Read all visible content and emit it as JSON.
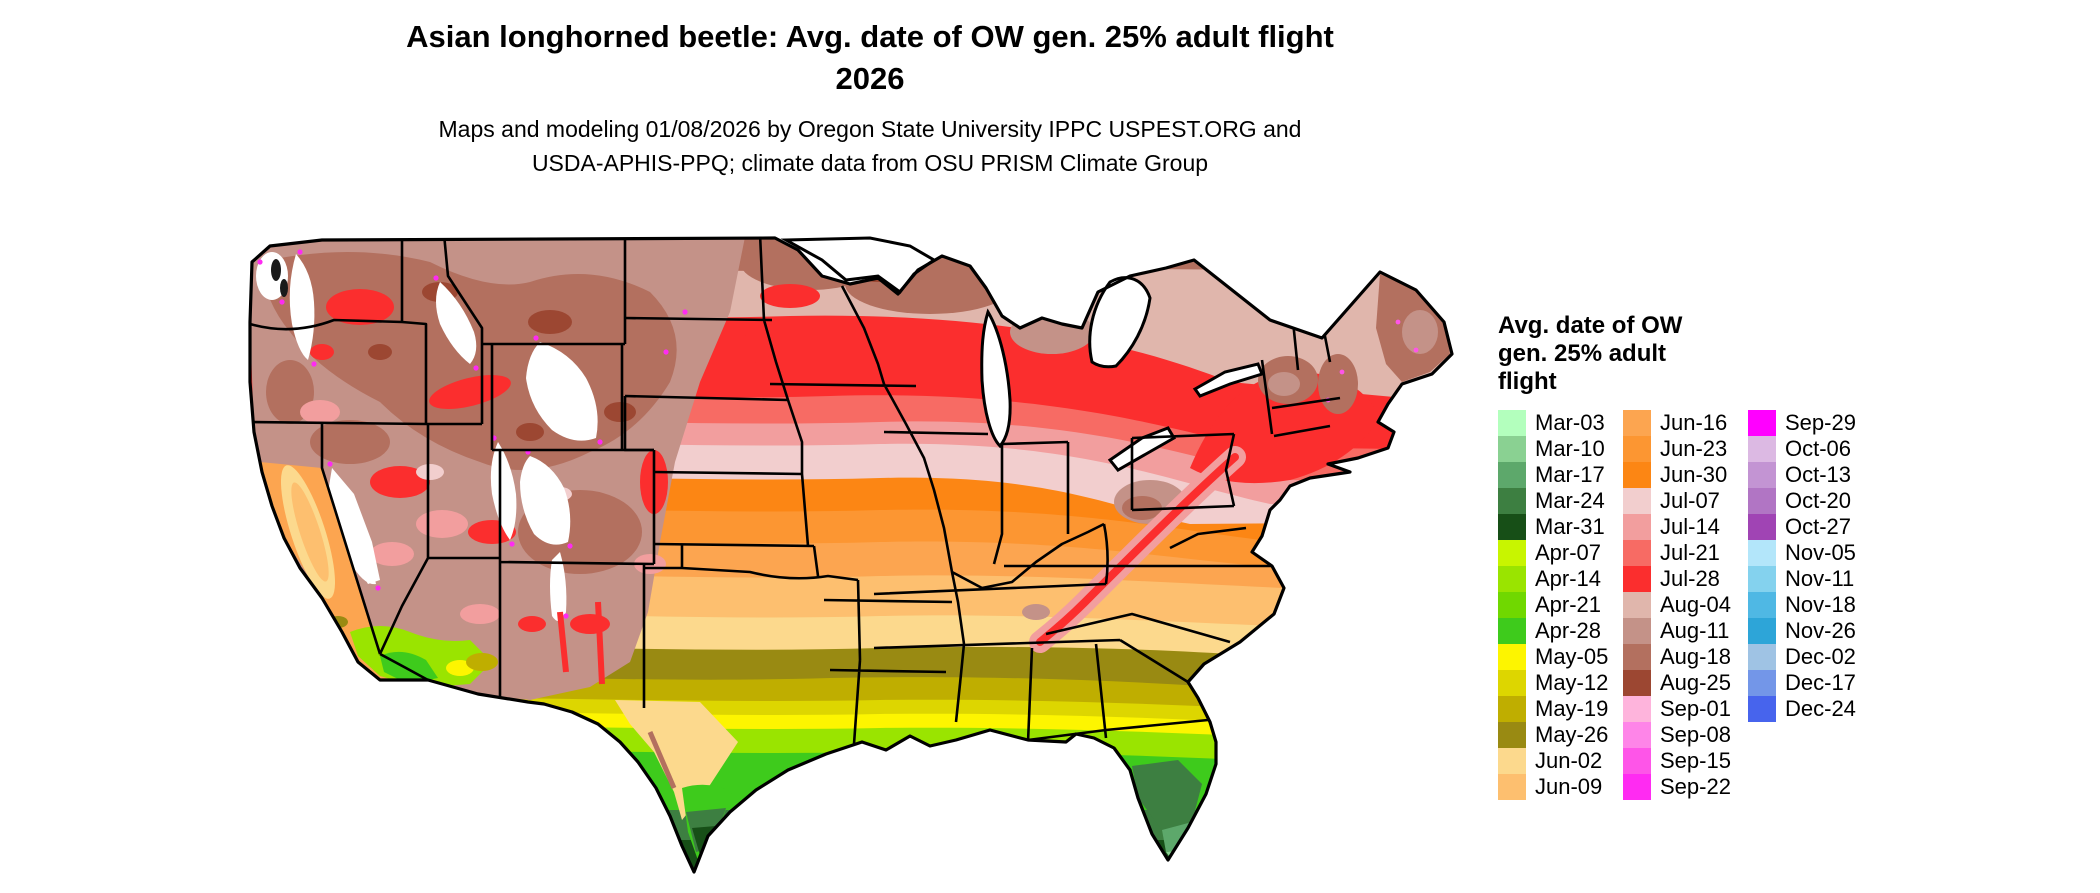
{
  "header": {
    "title_line1": "Asian longhorned beetle: Avg. date of OW gen. 25% adult flight",
    "title_line2": "2026",
    "subtitle_line1": "Maps and modeling 01/08/2026 by Oregon State University IPPC USPEST.ORG and",
    "subtitle_line2": "USDA-APHIS-PPQ; climate data from OSU PRISM Climate Group"
  },
  "legend": {
    "title_lines": [
      "Avg. date of OW",
      "gen. 25% adult",
      "flight"
    ],
    "columns": [
      {
        "entries": [
          {
            "label": "Mar-03",
            "color": "#b3ffbd"
          },
          {
            "label": "Mar-10",
            "color": "#8ad192"
          },
          {
            "label": "Mar-17",
            "color": "#5da86b"
          },
          {
            "label": "Mar-24",
            "color": "#3d7f41"
          },
          {
            "label": "Mar-31",
            "color": "#174f17"
          },
          {
            "label": "Apr-07",
            "color": "#c8f500"
          },
          {
            "label": "Apr-14",
            "color": "#9ae400"
          },
          {
            "label": "Apr-21",
            "color": "#70d800"
          },
          {
            "label": "Apr-28",
            "color": "#3ecb1c"
          },
          {
            "label": "May-05",
            "color": "#fdf500"
          },
          {
            "label": "May-12",
            "color": "#ddd600"
          },
          {
            "label": "May-19",
            "color": "#bfae00"
          },
          {
            "label": "May-26",
            "color": "#998a12"
          },
          {
            "label": "Jun-02",
            "color": "#fcd98d"
          },
          {
            "label": "Jun-09",
            "color": "#fdbf6f"
          }
        ]
      },
      {
        "entries": [
          {
            "label": "Jun-16",
            "color": "#fca550"
          },
          {
            "label": "Jun-23",
            "color": "#fc9632"
          },
          {
            "label": "Jun-30",
            "color": "#fc8614"
          },
          {
            "label": "Jul-07",
            "color": "#f2cece"
          },
          {
            "label": "Jul-14",
            "color": "#f29e9e"
          },
          {
            "label": "Jul-21",
            "color": "#f76b64"
          },
          {
            "label": "Jul-28",
            "color": "#fb2e2e"
          },
          {
            "label": "Aug-04",
            "color": "#e0b6ac"
          },
          {
            "label": "Aug-11",
            "color": "#c49288"
          },
          {
            "label": "Aug-18",
            "color": "#b3705f"
          },
          {
            "label": "Aug-25",
            "color": "#9c4732"
          },
          {
            "label": "Sep-01",
            "color": "#feb4dc"
          },
          {
            "label": "Sep-08",
            "color": "#fe85e8"
          },
          {
            "label": "Sep-15",
            "color": "#fe55e8"
          },
          {
            "label": "Sep-22",
            "color": "#ff2bf2"
          }
        ]
      },
      {
        "entries": [
          {
            "label": "Sep-29",
            "color": "#ff00ff"
          },
          {
            "label": "Oct-06",
            "color": "#dcb9e3"
          },
          {
            "label": "Oct-13",
            "color": "#c394d3"
          },
          {
            "label": "Oct-20",
            "color": "#b175c4"
          },
          {
            "label": "Oct-27",
            "color": "#a044b4"
          },
          {
            "label": "Nov-05",
            "color": "#b3e6fa"
          },
          {
            "label": "Nov-11",
            "color": "#84d2ee"
          },
          {
            "label": "Nov-18",
            "color": "#4fb8e4"
          },
          {
            "label": "Nov-26",
            "color": "#2da5d8"
          },
          {
            "label": "Dec-02",
            "color": "#9fc3e4"
          },
          {
            "label": "Dec-17",
            "color": "#7396e8"
          },
          {
            "label": "Dec-24",
            "color": "#4764ed"
          }
        ]
      }
    ]
  },
  "map": {
    "type": "choropleth_raster_map",
    "region": "Continental United States with state borders",
    "pattern_summary": "Flight dates grade from early (Mar-Apr greens in south Texas and south Florida) through May olives and June oranges across the mid-South, July pinks/reds across the central and northern tier, to August browns in the far north and mountains; white patches with magenta fringes mark high-elevation/late areas in the western mountains."
  }
}
